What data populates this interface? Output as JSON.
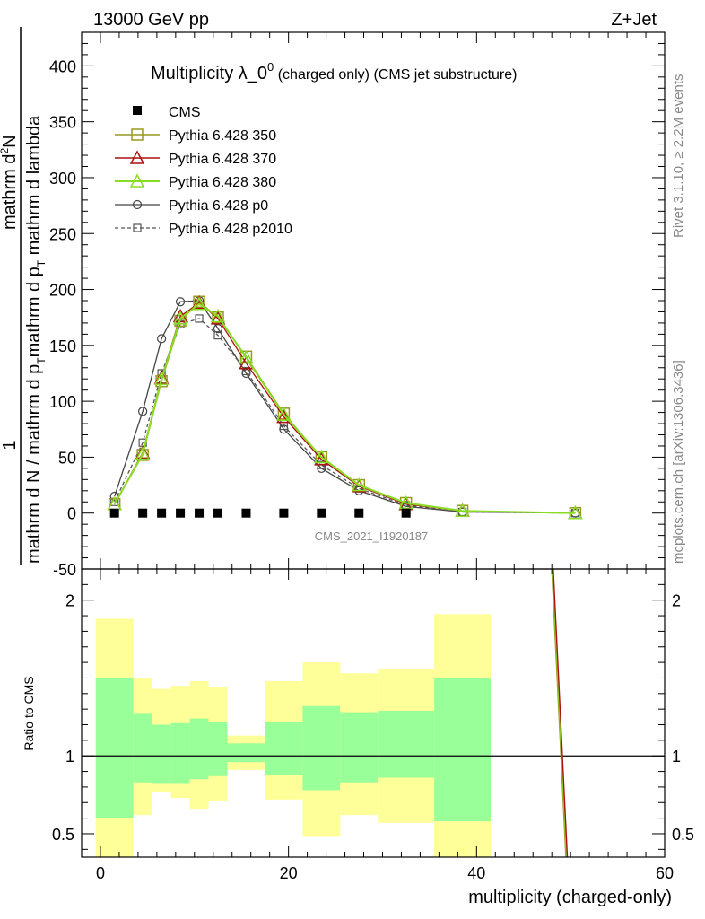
{
  "header": {
    "left": "13000 GeV pp",
    "right": "Z+Jet",
    "side_top": "Rivet 3.1.10, ≥ 2.2M events",
    "side_bottom": "mcplots.cern.ch [arXiv:1306.3436]"
  },
  "main": {
    "title": "Multiplicity λ_0",
    "title_sup": "0",
    "title_suffix": " (charged only) (CMS jet substructure)",
    "watermark": "CMS_2021_I1920187",
    "ylabel_numerator": "1",
    "ylabel_denominator_a": "mathrm d N / mathrm d p",
    "ylabel_denominator_b": "mathrm d p",
    "ylabel_sub_t1": "T",
    "ylabel_sub_t2": "T",
    "ylabel_denominator_c": " mathrm d lambda",
    "ylabel_top": "mathrm d",
    "ylabel_top_sup": "2",
    "ylabel_top_b": "N"
  },
  "ratio": {
    "ylabel": "Ratio to CMS"
  },
  "xaxis": {
    "label": "multiplicity (charged-only)"
  },
  "legend": {
    "cms": "CMS",
    "p350": "Pythia 6.428 350",
    "p370": "Pythia 6.428 370",
    "p380": "Pythia 6.428 380",
    "p0": "Pythia 6.428 p0",
    "p2010": "Pythia 6.428 p2010"
  },
  "colors": {
    "cms": "#000000",
    "p350": "#999922",
    "p370": "#aa1111",
    "p380": "#88dd22",
    "p0": "#444444",
    "p2010": "#555555",
    "band_inner": "#99ff99",
    "band_outer": "#ffff99"
  },
  "chart_data": {
    "type": "line",
    "main_ylim": [
      -50,
      430
    ],
    "ratio_ylim": [
      0.35,
      2.2
    ],
    "xlim": [
      -2,
      60
    ],
    "x_ticks": [
      "0",
      "20",
      "40",
      "60"
    ],
    "main_y_ticks": [
      "-50",
      "0",
      "50",
      "100",
      "150",
      "200",
      "250",
      "300",
      "350",
      "400"
    ],
    "ratio_y_ticks": [
      "0.5",
      "1",
      "2"
    ],
    "series": [
      {
        "key": "cms",
        "name": "CMS",
        "marker": "square-filled",
        "x": [
          1.5,
          4.5,
          6.5,
          8.5,
          10.5,
          12.5,
          15.5,
          19.5,
          23.5,
          27.5,
          32.5
        ],
        "y": [
          0,
          0,
          0,
          0,
          0,
          0,
          0,
          0,
          0,
          0,
          0
        ]
      },
      {
        "key": "p350",
        "name": "Pythia 6.428 350",
        "marker": "square-open",
        "x": [
          1.5,
          4.5,
          6.5,
          8.5,
          10.5,
          12.5,
          15.5,
          19.5,
          23.5,
          27.5,
          32.5,
          38.5,
          50.5
        ],
        "y": [
          8,
          52,
          118,
          172,
          189,
          175,
          140,
          89,
          50,
          25,
          9,
          2,
          0
        ]
      },
      {
        "key": "p370",
        "name": "Pythia 6.428 370",
        "marker": "triangle-open",
        "x": [
          1.5,
          4.5,
          6.5,
          8.5,
          10.5,
          12.5,
          15.5,
          19.5,
          23.5,
          27.5,
          32.5,
          38.5,
          50.5
        ],
        "y": [
          8,
          54,
          121,
          176,
          188,
          174,
          134,
          86,
          48,
          24,
          8,
          2,
          0
        ]
      },
      {
        "key": "p380",
        "name": "Pythia 6.428 380",
        "marker": "triangle-open",
        "x": [
          1.5,
          4.5,
          6.5,
          8.5,
          10.5,
          12.5,
          15.5,
          19.5,
          23.5,
          27.5,
          32.5,
          38.5,
          50.5
        ],
        "y": [
          8,
          53,
          120,
          174,
          187,
          176,
          139,
          88,
          50,
          25,
          9,
          2,
          0
        ]
      },
      {
        "key": "p0",
        "name": "Pythia 6.428 p0",
        "marker": "circle-open",
        "x": [
          1.5,
          4.5,
          6.5,
          8.5,
          10.5,
          12.5,
          15.5,
          19.5,
          23.5,
          27.5,
          32.5,
          38.5,
          50.5
        ],
        "y": [
          15,
          91,
          156,
          189,
          190,
          165,
          125,
          75,
          40,
          20,
          6,
          1,
          0
        ]
      },
      {
        "key": "p2010",
        "name": "Pythia 6.428 p2010",
        "marker": "square-open-dashed",
        "x": [
          1.5,
          4.5,
          6.5,
          8.5,
          10.5,
          12.5,
          15.5,
          19.5,
          23.5,
          27.5,
          32.5,
          38.5,
          50.5
        ],
        "y": [
          10,
          63,
          125,
          169,
          174,
          159,
          127,
          78,
          43,
          22,
          7,
          1,
          0
        ]
      }
    ],
    "ratio_bands": {
      "edges": [
        -0.5,
        3.5,
        5.5,
        7.5,
        9.5,
        11.5,
        13.5,
        17.5,
        21.5,
        25.5,
        29.5,
        35.5,
        41.5
      ],
      "inner_lo": [
        0.6,
        0.83,
        0.82,
        0.82,
        0.85,
        0.87,
        0.96,
        0.88,
        0.78,
        0.83,
        0.86,
        0.58
      ],
      "inner_hi": [
        1.5,
        1.27,
        1.2,
        1.21,
        1.24,
        1.22,
        1.08,
        1.22,
        1.32,
        1.28,
        1.29,
        1.5
      ],
      "outer_lo": [
        0.35,
        0.62,
        0.77,
        0.73,
        0.66,
        0.71,
        0.91,
        0.72,
        0.48,
        0.62,
        0.57,
        0.35
      ],
      "outer_hi": [
        1.88,
        1.5,
        1.43,
        1.45,
        1.48,
        1.44,
        1.13,
        1.48,
        1.6,
        1.53,
        1.56,
        1.91
      ]
    },
    "ratio_line": {
      "x": [
        48,
        49.5
      ],
      "y": [
        2.2,
        0.35
      ]
    }
  }
}
